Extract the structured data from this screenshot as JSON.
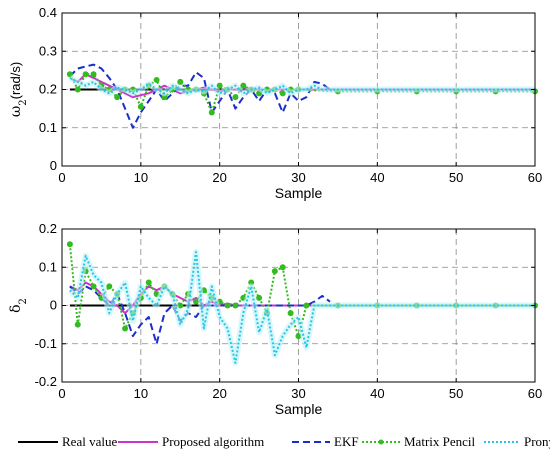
{
  "chart_data": [
    {
      "type": "line",
      "ylabel_symbol": "ω",
      "ylabel_sub": "2",
      "ylabel_suffix": "(rad/s)",
      "xlabel": "Sample",
      "xlim": [
        0,
        60
      ],
      "ylim": [
        0,
        0.4
      ],
      "xticks": [
        "0",
        "10",
        "20",
        "30",
        "40",
        "50",
        "60"
      ],
      "yticks": [
        "0",
        "0.1",
        "0.2",
        "0.3",
        "0.4"
      ],
      "grid": true,
      "series": [
        {
          "name": "Real value",
          "color": "#000000",
          "x": [
            1,
            60
          ],
          "y": [
            0.2,
            0.2
          ]
        },
        {
          "name": "Proposed algorithm",
          "color": "#cc33cc",
          "x": [
            1,
            2,
            3,
            4,
            5,
            6,
            7,
            8,
            9,
            10,
            11,
            12,
            13,
            14,
            15,
            16,
            17,
            18,
            19,
            20,
            21,
            22,
            23,
            24,
            25,
            26,
            27,
            28,
            29,
            30,
            35,
            40,
            45,
            50,
            55,
            60
          ],
          "y": [
            0.23,
            0.22,
            0.24,
            0.23,
            0.22,
            0.21,
            0.2,
            0.19,
            0.18,
            0.185,
            0.19,
            0.2,
            0.21,
            0.2,
            0.19,
            0.195,
            0.2,
            0.205,
            0.2,
            0.195,
            0.2,
            0.2,
            0.205,
            0.2,
            0.2,
            0.2,
            0.2,
            0.2,
            0.2,
            0.2,
            0.2,
            0.2,
            0.2,
            0.2,
            0.2,
            0.2
          ]
        },
        {
          "name": "EKF",
          "color": "#1a2fc9",
          "x": [
            1,
            2,
            3,
            4,
            5,
            6,
            7,
            8,
            9,
            10,
            11,
            12,
            13,
            14,
            15,
            16,
            17,
            18,
            19,
            20,
            21,
            22,
            23,
            24,
            25,
            26,
            27,
            28,
            29,
            30,
            31,
            32,
            33,
            34
          ],
          "y": [
            0.235,
            0.255,
            0.26,
            0.265,
            0.255,
            0.23,
            0.2,
            0.15,
            0.1,
            0.14,
            0.17,
            0.2,
            0.17,
            0.19,
            0.21,
            0.21,
            0.245,
            0.23,
            0.14,
            0.17,
            0.2,
            0.15,
            0.18,
            0.2,
            0.17,
            0.2,
            0.19,
            0.14,
            0.19,
            0.17,
            0.18,
            0.22,
            0.215,
            0.2
          ]
        },
        {
          "name": "Matrix Pencil",
          "color": "#33bb22",
          "x": [
            1,
            2,
            3,
            4,
            5,
            6,
            7,
            8,
            9,
            10,
            11,
            12,
            13,
            14,
            15,
            16,
            17,
            18,
            19,
            20,
            21,
            22,
            23,
            24,
            25,
            26,
            27,
            28,
            29,
            30,
            35,
            40,
            45,
            50,
            55,
            60
          ],
          "y": [
            0.24,
            0.2,
            0.24,
            0.24,
            0.21,
            0.2,
            0.18,
            0.2,
            0.2,
            0.155,
            0.21,
            0.225,
            0.18,
            0.2,
            0.22,
            0.2,
            0.2,
            0.19,
            0.14,
            0.21,
            0.2,
            0.18,
            0.21,
            0.2,
            0.19,
            0.2,
            0.2,
            0.19,
            0.2,
            0.2,
            0.195,
            0.195,
            0.195,
            0.195,
            0.195,
            0.195
          ]
        },
        {
          "name": "Prony",
          "color": "#22c8e6",
          "x": [
            1,
            2,
            3,
            4,
            5,
            6,
            7,
            8,
            9,
            10,
            11,
            12,
            13,
            14,
            15,
            16,
            17,
            18,
            19,
            20,
            21,
            22,
            23,
            24,
            25,
            26,
            27,
            28,
            29,
            30,
            31,
            32,
            33,
            35,
            40,
            45,
            50,
            55,
            60
          ],
          "y": [
            0.23,
            0.22,
            0.21,
            0.22,
            0.2,
            0.19,
            0.205,
            0.2,
            0.19,
            0.2,
            0.215,
            0.2,
            0.19,
            0.21,
            0.2,
            0.19,
            0.2,
            0.195,
            0.21,
            0.19,
            0.2,
            0.21,
            0.19,
            0.2,
            0.205,
            0.19,
            0.2,
            0.21,
            0.19,
            0.2,
            0.2,
            0.21,
            0.2,
            0.2,
            0.2,
            0.2,
            0.2,
            0.2,
            0.2
          ]
        }
      ]
    },
    {
      "type": "line",
      "ylabel_symbol": "δ",
      "ylabel_sub": "2",
      "ylabel_suffix": "",
      "xlabel": "Sample",
      "xlim": [
        0,
        60
      ],
      "ylim": [
        -0.2,
        0.2
      ],
      "xticks": [
        "0",
        "10",
        "20",
        "30",
        "40",
        "50",
        "60"
      ],
      "yticks": [
        "-0.2",
        "-0.1",
        "0",
        "0.1",
        "0.2"
      ],
      "grid": true,
      "series": [
        {
          "name": "Real value",
          "color": "#000000",
          "x": [
            1,
            60
          ],
          "y": [
            0,
            0
          ]
        },
        {
          "name": "Proposed algorithm",
          "color": "#cc33cc",
          "x": [
            1,
            2,
            3,
            4,
            5,
            6,
            7,
            8,
            9,
            10,
            11,
            12,
            13,
            14,
            15,
            16,
            17,
            18,
            19,
            20,
            21,
            22,
            23,
            24,
            25,
            26,
            27,
            28,
            29,
            30,
            35,
            40,
            45,
            50,
            55,
            60
          ],
          "y": [
            0.05,
            0.04,
            0.06,
            0.05,
            0.03,
            0.01,
            0.0,
            -0.02,
            0.0,
            0.03,
            0.05,
            0.04,
            0.05,
            0.03,
            0.02,
            0.01,
            0.02,
            0.0,
            0.01,
            0.0,
            0.005,
            0.0,
            0.0,
            0.0,
            0.0,
            0.0,
            0.0,
            0.0,
            0.0,
            0.0,
            0.0,
            0.0,
            0.0,
            0.0,
            0.0,
            0.0
          ]
        },
        {
          "name": "EKF",
          "color": "#1a2fc9",
          "x": [
            1,
            2,
            3,
            4,
            5,
            6,
            7,
            8,
            9,
            10,
            11,
            12,
            13,
            14,
            15,
            16,
            17,
            18,
            19,
            20,
            21,
            22,
            23,
            24,
            25,
            26,
            27,
            28,
            29,
            30,
            31,
            32,
            33,
            34
          ],
          "y": [
            0.05,
            0.03,
            0.05,
            0.04,
            0.02,
            0.0,
            0.03,
            -0.02,
            -0.08,
            -0.05,
            -0.03,
            -0.1,
            -0.02,
            0.0,
            -0.04,
            -0.02,
            -0.03,
            0.0,
            0.0,
            0.0,
            0.0,
            0.0,
            0.0,
            0.0,
            0.0,
            0.0,
            0.0,
            0.0,
            0.0,
            0.0,
            0.0,
            0.01,
            0.025,
            0.01
          ]
        },
        {
          "name": "Matrix Pencil",
          "color": "#33bb22",
          "x": [
            1,
            2,
            3,
            4,
            5,
            6,
            7,
            8,
            9,
            10,
            11,
            12,
            13,
            14,
            15,
            16,
            17,
            18,
            19,
            20,
            21,
            22,
            23,
            24,
            25,
            26,
            27,
            28,
            29,
            30,
            31,
            35,
            40,
            45,
            50,
            55,
            60
          ],
          "y": [
            0.16,
            -0.05,
            0.09,
            0.05,
            0.02,
            0.05,
            0.03,
            -0.06,
            -0.02,
            0.02,
            0.06,
            0.03,
            0.05,
            0.03,
            0.0,
            0.03,
            0.01,
            0.04,
            0.02,
            0.01,
            0.0,
            0.0,
            0.02,
            0.06,
            0.02,
            -0.02,
            0.09,
            0.1,
            -0.02,
            -0.08,
            0.0,
            0.0,
            0.0,
            0.0,
            0.0,
            0.0,
            0.0
          ]
        },
        {
          "name": "Prony",
          "color": "#22c8e6",
          "x": [
            1,
            2,
            3,
            4,
            5,
            6,
            7,
            8,
            9,
            10,
            11,
            12,
            13,
            14,
            15,
            16,
            17,
            18,
            19,
            20,
            21,
            22,
            23,
            24,
            25,
            26,
            27,
            28,
            29,
            30,
            31,
            32,
            33,
            35,
            40,
            45,
            50,
            55,
            60
          ],
          "y": [
            0.04,
            0.02,
            0.13,
            0.08,
            0.06,
            -0.02,
            0.03,
            0.06,
            -0.04,
            0.05,
            0.02,
            0.0,
            0.05,
            0.03,
            -0.05,
            -0.01,
            0.14,
            -0.06,
            0.05,
            -0.03,
            -0.06,
            -0.15,
            -0.02,
            0.05,
            -0.07,
            -0.01,
            -0.13,
            -0.08,
            -0.05,
            -0.03,
            -0.11,
            0.0,
            0.0,
            0.0,
            0.0,
            0.0,
            0.0,
            0.0,
            0.0
          ]
        }
      ]
    }
  ]
}
